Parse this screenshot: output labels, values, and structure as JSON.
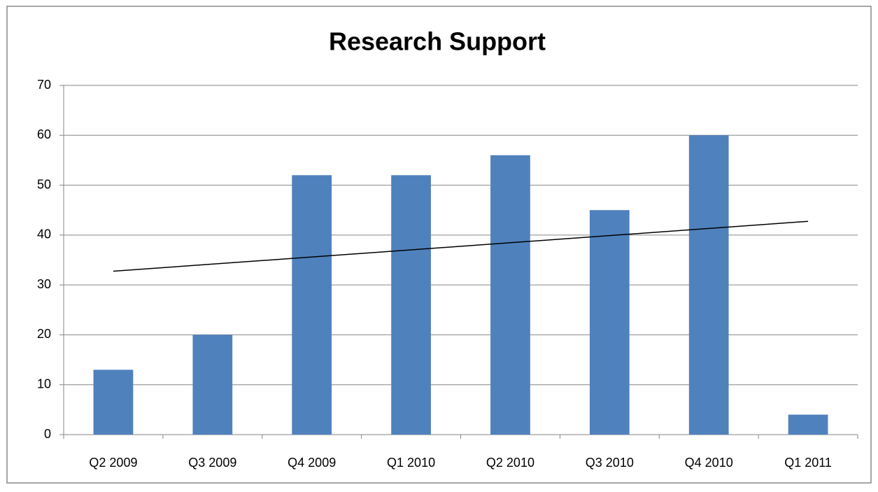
{
  "chart_data": {
    "type": "bar",
    "title": "Research Support",
    "categories": [
      "Q2 2009",
      "Q3 2009",
      "Q4 2009",
      "Q1 2010",
      "Q2 2010",
      "Q3 2010",
      "Q4 2010",
      "Q1 2011"
    ],
    "values": [
      13,
      20,
      52,
      52,
      56,
      45,
      60,
      4
    ],
    "color": "#4f81bd",
    "ylim": [
      0,
      70
    ],
    "yticks": [
      0,
      10,
      20,
      30,
      40,
      50,
      60,
      70
    ],
    "grid": true,
    "trendline": "linear"
  }
}
